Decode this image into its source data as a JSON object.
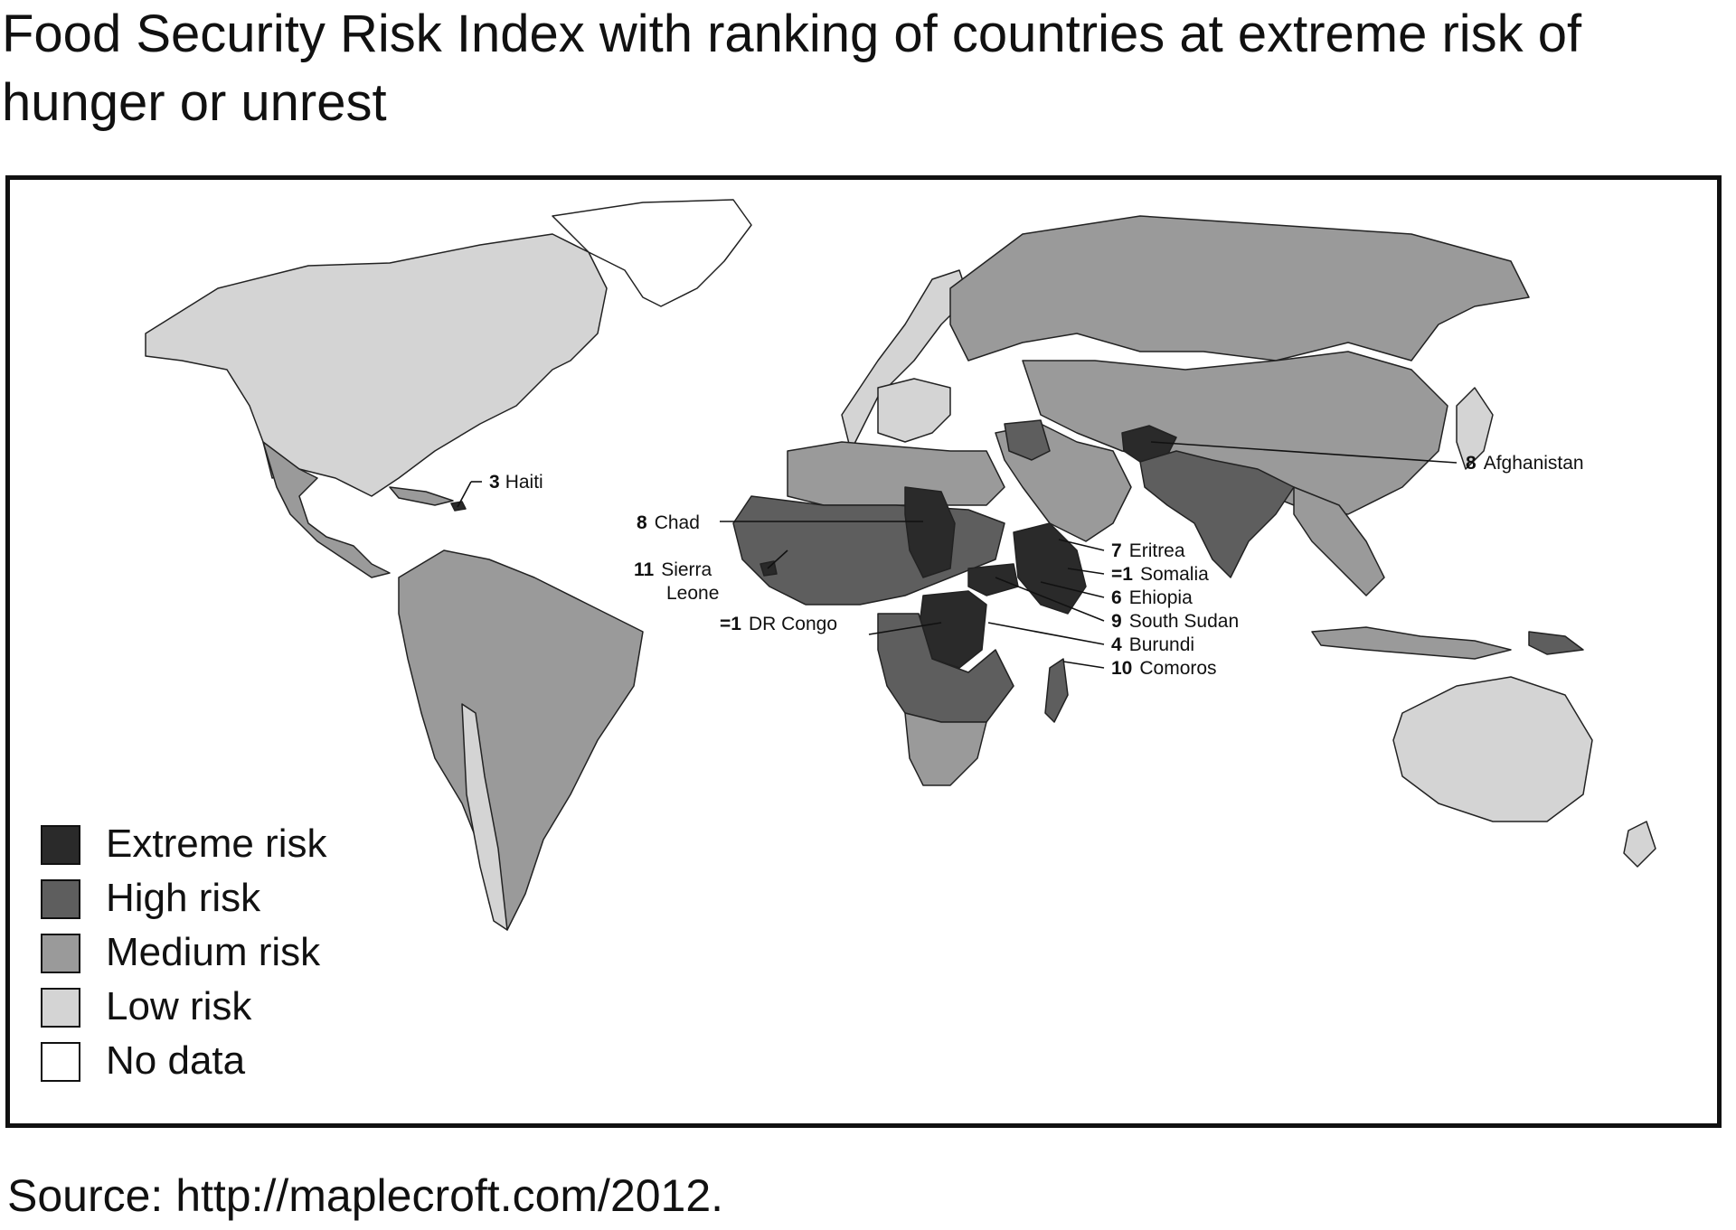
{
  "title": "Food Security Risk Index with ranking of countries at extreme risk of hunger or unrest",
  "source": "Source: http://maplecroft.com/2012.",
  "legend": {
    "items": [
      {
        "label": "Extreme risk",
        "color": "#2a2a2a"
      },
      {
        "label": "High risk",
        "color": "#5e5e5e"
      },
      {
        "label": "Medium risk",
        "color": "#9a9a9a"
      },
      {
        "label": "Low risk",
        "color": "#d4d4d4"
      },
      {
        "label": "No data",
        "color": "#ffffff"
      }
    ]
  },
  "annotations": [
    {
      "rank": "3",
      "name": "Haiti"
    },
    {
      "rank": "8",
      "name": "Afghanistan"
    },
    {
      "rank": "8",
      "name": "Chad"
    },
    {
      "rank": "11",
      "name": "Sierra",
      "name2": "Leone"
    },
    {
      "rank": "7",
      "name": "Eritrea"
    },
    {
      "rank": "=1",
      "name": "Somalia"
    },
    {
      "rank": "6",
      "name": "Ehiopia"
    },
    {
      "rank": "9",
      "name": "South Sudan"
    },
    {
      "rank": "=1",
      "name": "DR Congo"
    },
    {
      "rank": "4",
      "name": "Burundi"
    },
    {
      "rank": "10",
      "name": "Comoros"
    }
  ]
}
